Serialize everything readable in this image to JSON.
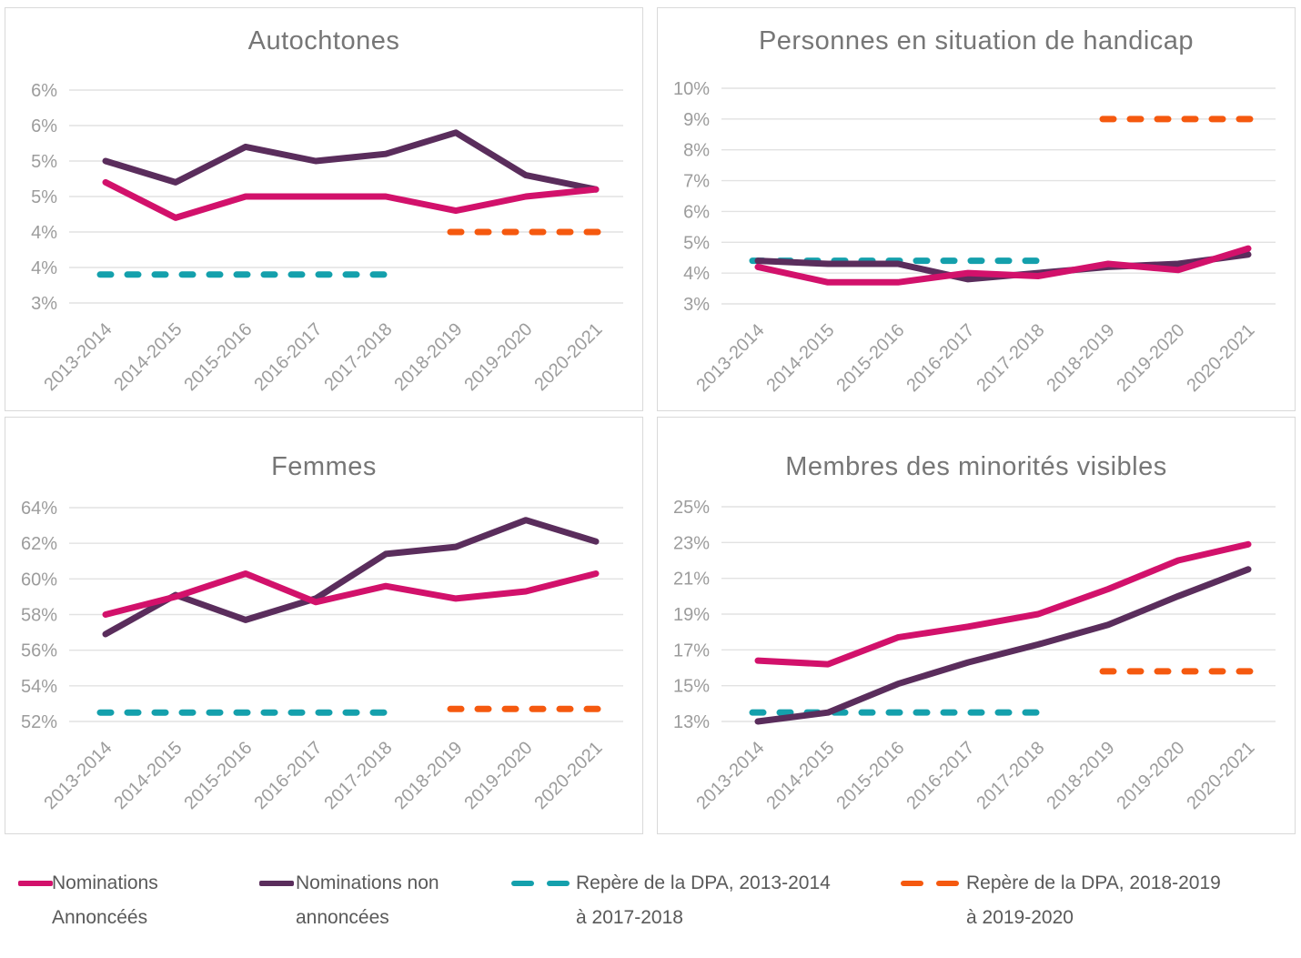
{
  "colors": {
    "announced": "#D2116B",
    "unannounced": "#5A2D5C",
    "benchmark_old": "#14A0AC",
    "benchmark_new": "#F5590F",
    "gridline": "#E2E2E2",
    "panel_border": "#D9D9D9",
    "title_text": "#767676",
    "axis_text": "#9C9C9C",
    "legend_text": "#595959"
  },
  "categories": [
    "2013-2014",
    "2014-2015",
    "2015-2016",
    "2016-2017",
    "2017-2018",
    "2018-2019",
    "2019-2020",
    "2020-2021"
  ],
  "legend": {
    "items": [
      {
        "label_lines": [
          "Nominations",
          "Annoncéés"
        ],
        "style": "solid",
        "color_key": "announced"
      },
      {
        "label_lines": [
          "Nominations non",
          "annoncées"
        ],
        "style": "solid",
        "color_key": "unannounced"
      },
      {
        "label_lines": [
          "Repère de la DPA, 2013-2014",
          "à 2017-2018"
        ],
        "style": "dashed",
        "color_key": "benchmark_old"
      },
      {
        "label_lines": [
          "Repère de la DPA, 2018-2019",
          "à 2019-2020"
        ],
        "style": "dashed",
        "color_key": "benchmark_new"
      }
    ]
  },
  "chart_data": [
    {
      "type": "line",
      "title": "Autochtones",
      "axis": {
        "y_min": 3,
        "y_max": 6,
        "y_step": 0.5,
        "grid": true,
        "y_tick_labels_top_to_bottom": [
          "6%",
          "6%",
          "5%",
          "5%",
          "4%",
          "4%",
          "3%"
        ]
      },
      "series": [
        {
          "name": "Nominations Annoncéés",
          "color_key": "announced",
          "values": [
            4.7,
            4.2,
            4.5,
            4.5,
            4.5,
            4.3,
            4.5,
            4.6
          ]
        },
        {
          "name": "Nominations non annoncées",
          "color_key": "unannounced",
          "values": [
            5.0,
            4.7,
            5.2,
            5.0,
            5.1,
            5.4,
            4.8,
            4.6
          ]
        }
      ],
      "benchmarks": [
        {
          "name": "Repère de la DPA, 2013-2014 à 2017-2018",
          "value": 3.4,
          "span": [
            0,
            4
          ],
          "color_key": "benchmark_old"
        },
        {
          "name": "Repère de la DPA, 2018-2019 à 2019-2020",
          "value": 4.0,
          "span": [
            5,
            7
          ],
          "color_key": "benchmark_new"
        }
      ]
    },
    {
      "type": "line",
      "title": "Personnes en situation de handicap",
      "axis": {
        "y_min": 3,
        "y_max": 10,
        "y_step": 1,
        "grid": true,
        "y_tick_labels_top_to_bottom": [
          "10%",
          "9%",
          "8%",
          "7%",
          "6%",
          "5%",
          "4%",
          "3%"
        ]
      },
      "series": [
        {
          "name": "Nominations Annoncéés",
          "color_key": "announced",
          "values": [
            4.2,
            3.7,
            3.7,
            4.0,
            3.9,
            4.3,
            4.1,
            4.8
          ]
        },
        {
          "name": "Nominations non annoncées",
          "color_key": "unannounced",
          "values": [
            4.4,
            4.3,
            4.3,
            3.8,
            4.0,
            4.2,
            4.3,
            4.6
          ]
        }
      ],
      "benchmarks": [
        {
          "name": "Repère de la DPA, 2013-2014 à 2017-2018",
          "value": 4.4,
          "span": [
            0,
            4
          ],
          "color_key": "benchmark_old"
        },
        {
          "name": "Repère de la DPA, 2018-2019 à 2019-2020",
          "value": 9.0,
          "span": [
            5,
            7
          ],
          "color_key": "benchmark_new"
        }
      ]
    },
    {
      "type": "line",
      "title": "Femmes",
      "axis": {
        "y_min": 52,
        "y_max": 64,
        "y_step": 2,
        "grid": true,
        "y_tick_labels_top_to_bottom": [
          "64%",
          "62%",
          "60%",
          "58%",
          "56%",
          "54%",
          "52%"
        ]
      },
      "series": [
        {
          "name": "Nominations Annoncéés",
          "color_key": "announced",
          "values": [
            58.0,
            59.0,
            60.3,
            58.7,
            59.6,
            58.9,
            59.3,
            60.3
          ]
        },
        {
          "name": "Nominations non annoncées",
          "color_key": "unannounced",
          "values": [
            56.9,
            59.1,
            57.7,
            58.9,
            61.4,
            61.8,
            63.3,
            62.1
          ]
        }
      ],
      "benchmarks": [
        {
          "name": "Repère de la DPA, 2013-2014 à 2017-2018",
          "value": 52.5,
          "span": [
            0,
            4
          ],
          "color_key": "benchmark_old"
        },
        {
          "name": "Repère de la DPA, 2018-2019 à 2019-2020",
          "value": 52.7,
          "span": [
            5,
            7
          ],
          "color_key": "benchmark_new"
        }
      ]
    },
    {
      "type": "line",
      "title": "Membres des minorités visibles",
      "axis": {
        "y_min": 13,
        "y_max": 25,
        "y_step": 2,
        "grid": true,
        "y_tick_labels_top_to_bottom": [
          "25%",
          "23%",
          "21%",
          "19%",
          "17%",
          "15%",
          "13%"
        ]
      },
      "series": [
        {
          "name": "Nominations Annoncéés",
          "color_key": "announced",
          "values": [
            16.4,
            16.2,
            17.7,
            18.3,
            19.0,
            20.4,
            22.0,
            22.9
          ]
        },
        {
          "name": "Nominations non annoncées",
          "color_key": "unannounced",
          "values": [
            13.0,
            13.5,
            15.1,
            16.3,
            17.3,
            18.4,
            20.0,
            21.5
          ]
        }
      ],
      "benchmarks": [
        {
          "name": "Repère de la DPA, 2013-2014 à 2017-2018",
          "value": 13.5,
          "span": [
            0,
            4
          ],
          "color_key": "benchmark_old"
        },
        {
          "name": "Repère de la DPA, 2018-2019 à 2019-2020",
          "value": 15.8,
          "span": [
            5,
            7
          ],
          "color_key": "benchmark_new"
        }
      ]
    }
  ]
}
